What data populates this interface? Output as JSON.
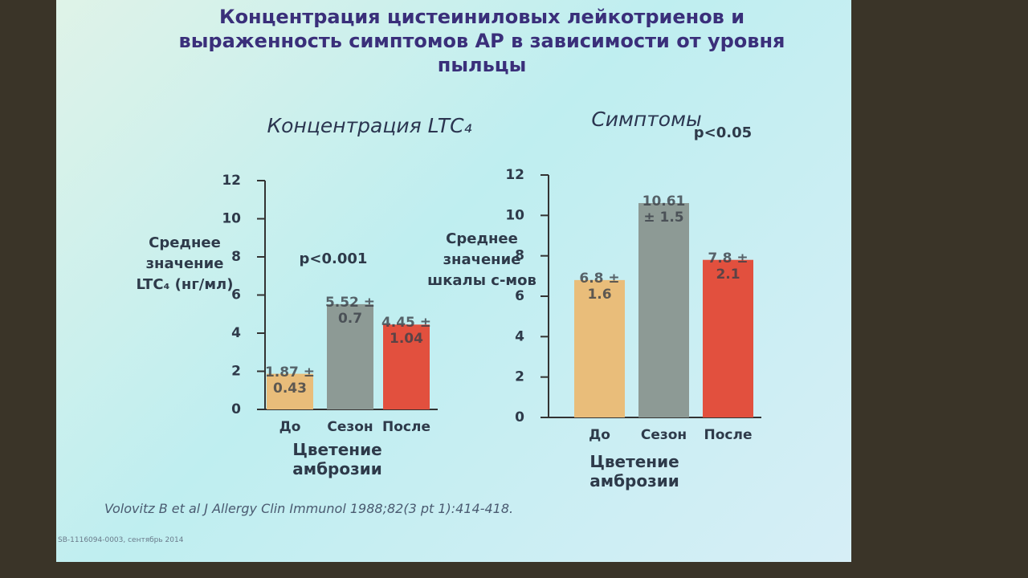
{
  "title": "Концентрация цистеиниловых лейкотриенов и выраженность симптомов АР в зависимости от уровня пыльцы",
  "citation": "Volovitz B et al J Allergy Clin Immunol 1988;82(3 pt 1):414-418.",
  "footer": "SB-1116094-0003, сентябрь 2014",
  "chart_data": [
    {
      "type": "bar",
      "title": "Концентрация LTC₄",
      "y_label": "Среднее значение LTC₄ (нг/мл)",
      "x_label": "Цветение амброзии",
      "annotation": "p<0.001",
      "categories": [
        "До",
        "Сезон",
        "После"
      ],
      "values": [
        1.87,
        5.52,
        4.45
      ],
      "value_labels": [
        "1.87 ± 0.43",
        "5.52 ± 0.7",
        "4.45 ± 1.04"
      ],
      "colors": [
        "#e9bd7a",
        "#8d9a95",
        "#e2503e"
      ],
      "ylim": [
        0,
        12
      ],
      "yticks": [
        0,
        2,
        4,
        6,
        8,
        10,
        12
      ]
    },
    {
      "type": "bar",
      "title": "Симптомы",
      "y_label": "Среднее значение шкалы с-мов",
      "x_label": "Цветение амброзии",
      "annotation": "p<0.05",
      "categories": [
        "До",
        "Сезон",
        "После"
      ],
      "values": [
        6.8,
        10.61,
        7.8
      ],
      "value_labels": [
        "6.8 ± 1.6",
        "10.61 ± 1.5",
        "7.8 ± 2.1"
      ],
      "colors": [
        "#e9bd7a",
        "#8d9a95",
        "#e2503e"
      ],
      "ylim": [
        0,
        12
      ],
      "yticks": [
        0,
        2,
        4,
        6,
        8,
        10,
        12
      ]
    }
  ]
}
